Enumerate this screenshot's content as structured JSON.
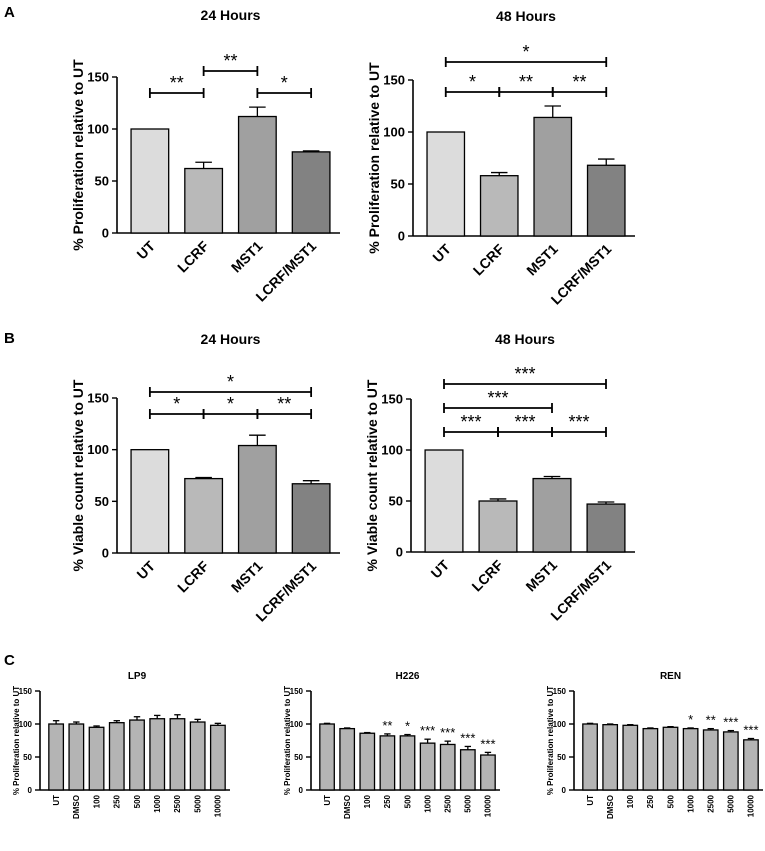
{
  "panels": {
    "a": "A",
    "b": "B",
    "c": "C"
  },
  "chart_data": [
    {
      "id": "A-24",
      "panel": "A",
      "type": "bar",
      "title": "24 Hours",
      "ylabel": "% Proliferation relative to UT",
      "xlabel": "",
      "categories": [
        "UT",
        "LCRF",
        "MST1",
        "LCRF/MST1"
      ],
      "values": [
        100,
        62,
        112,
        78
      ],
      "errors": [
        0,
        6,
        9,
        1
      ],
      "colors": [
        "#dcdcdc",
        "#b9b9b9",
        "#a0a0a0",
        "#828282"
      ],
      "ylim": [
        0,
        150
      ],
      "yticks": [
        "0",
        "50",
        "100",
        "150"
      ],
      "significance": [
        {
          "from": 0,
          "to": 1,
          "level": 1,
          "label": "**"
        },
        {
          "from": 1,
          "to": 2,
          "level": 2,
          "label": "**"
        },
        {
          "from": 2,
          "to": 3,
          "level": 1,
          "label": "*"
        }
      ]
    },
    {
      "id": "A-48",
      "panel": "A",
      "type": "bar",
      "title": "48 Hours",
      "ylabel": "% Proliferation relative to UT",
      "xlabel": "",
      "categories": [
        "UT",
        "LCRF",
        "MST1",
        "LCRF/MST1"
      ],
      "values": [
        100,
        58,
        114,
        68
      ],
      "errors": [
        0,
        3,
        11,
        6
      ],
      "colors": [
        "#dcdcdc",
        "#b9b9b9",
        "#a0a0a0",
        "#828282"
      ],
      "ylim": [
        0,
        150
      ],
      "yticks": [
        "0",
        "50",
        "100",
        "150"
      ],
      "significance": [
        {
          "from": 0,
          "to": 1,
          "level": 1,
          "label": "*"
        },
        {
          "from": 1,
          "to": 2,
          "level": 1,
          "label": "**"
        },
        {
          "from": 2,
          "to": 3,
          "level": 1,
          "label": "**"
        },
        {
          "from": 0,
          "to": 3,
          "level": 2,
          "label": "*"
        }
      ]
    },
    {
      "id": "B-24",
      "panel": "B",
      "type": "bar",
      "title": "24 Hours",
      "ylabel": "% Viable count relative to UT",
      "xlabel": "",
      "categories": [
        "UT",
        "LCRF",
        "MST1",
        "LCRF/MST1"
      ],
      "values": [
        100,
        72,
        104,
        67
      ],
      "errors": [
        0,
        1,
        10,
        3
      ],
      "colors": [
        "#dcdcdc",
        "#b9b9b9",
        "#a0a0a0",
        "#828282"
      ],
      "ylim": [
        0,
        150
      ],
      "yticks": [
        "0",
        "50",
        "100",
        "150"
      ],
      "significance": [
        {
          "from": 0,
          "to": 1,
          "level": 1,
          "label": "*"
        },
        {
          "from": 1,
          "to": 2,
          "level": 1,
          "label": "*"
        },
        {
          "from": 2,
          "to": 3,
          "level": 1,
          "label": "**"
        },
        {
          "from": 0,
          "to": 3,
          "level": 2,
          "label": "*"
        }
      ]
    },
    {
      "id": "B-48",
      "panel": "B",
      "type": "bar",
      "title": "48 Hours",
      "ylabel": "% Viable count relative to UT",
      "xlabel": "",
      "categories": [
        "UT",
        "LCRF",
        "MST1",
        "LCRF/MST1"
      ],
      "values": [
        100,
        50,
        72,
        47
      ],
      "errors": [
        0,
        2,
        2,
        2
      ],
      "colors": [
        "#dcdcdc",
        "#b9b9b9",
        "#a0a0a0",
        "#828282"
      ],
      "ylim": [
        0,
        150
      ],
      "yticks": [
        "0",
        "50",
        "100",
        "150"
      ],
      "significance": [
        {
          "from": 0,
          "to": 1,
          "level": 1,
          "label": "***"
        },
        {
          "from": 1,
          "to": 2,
          "level": 1,
          "label": "***"
        },
        {
          "from": 2,
          "to": 3,
          "level": 1,
          "label": "***"
        },
        {
          "from": 0,
          "to": 2,
          "level": 2,
          "label": "***"
        },
        {
          "from": 0,
          "to": 3,
          "level": 3,
          "label": "***"
        }
      ]
    },
    {
      "id": "C-LP9",
      "panel": "C",
      "type": "bar",
      "title": "LP9",
      "ylabel": "% Proliferation relative to UT",
      "xlabel": "",
      "categories": [
        "UT",
        "DMSO",
        "100",
        "250",
        "500",
        "1000",
        "2500",
        "5000",
        "10000"
      ],
      "values": [
        100,
        100,
        95,
        102,
        106,
        108,
        108,
        103,
        98
      ],
      "errors": [
        5,
        3,
        2,
        3,
        5,
        5,
        6,
        4,
        3
      ],
      "colors": [
        "#b4b4b4"
      ],
      "ylim": [
        0,
        150
      ],
      "yticks": [
        "0",
        "50",
        "100",
        "150"
      ],
      "stars": [
        "",
        "",
        "",
        "",
        "",
        "",
        "",
        "",
        ""
      ]
    },
    {
      "id": "C-H226",
      "panel": "C",
      "type": "bar",
      "title": "H226",
      "ylabel": "% Proliferation relative to UT",
      "xlabel": "",
      "categories": [
        "UT",
        "DMSO",
        "100",
        "250",
        "500",
        "1000",
        "2500",
        "5000",
        "10000"
      ],
      "values": [
        100,
        93,
        86,
        82,
        82,
        71,
        69,
        61,
        53
      ],
      "errors": [
        1,
        1,
        1,
        3,
        2,
        6,
        5,
        5,
        4
      ],
      "colors": [
        "#b4b4b4"
      ],
      "ylim": [
        0,
        150
      ],
      "yticks": [
        "0",
        "50",
        "100",
        "150"
      ],
      "stars": [
        "",
        "",
        "",
        "**",
        "*",
        "***",
        "***",
        "***",
        "***"
      ]
    },
    {
      "id": "C-REN",
      "panel": "C",
      "type": "bar",
      "title": "REN",
      "ylabel": "% Proliferation relative to UT",
      "xlabel": "",
      "categories": [
        "UT",
        "DMSO",
        "100",
        "250",
        "500",
        "1000",
        "2500",
        "5000",
        "10000"
      ],
      "values": [
        100,
        99,
        98,
        93,
        95,
        93,
        91,
        88,
        76
      ],
      "errors": [
        1,
        1,
        1,
        1,
        1,
        1,
        2,
        2,
        2
      ],
      "colors": [
        "#b4b4b4"
      ],
      "ylim": [
        0,
        150
      ],
      "yticks": [
        "0",
        "50",
        "100",
        "150"
      ],
      "stars": [
        "",
        "",
        "",
        "",
        "",
        "*",
        "**",
        "***",
        "***"
      ]
    }
  ]
}
